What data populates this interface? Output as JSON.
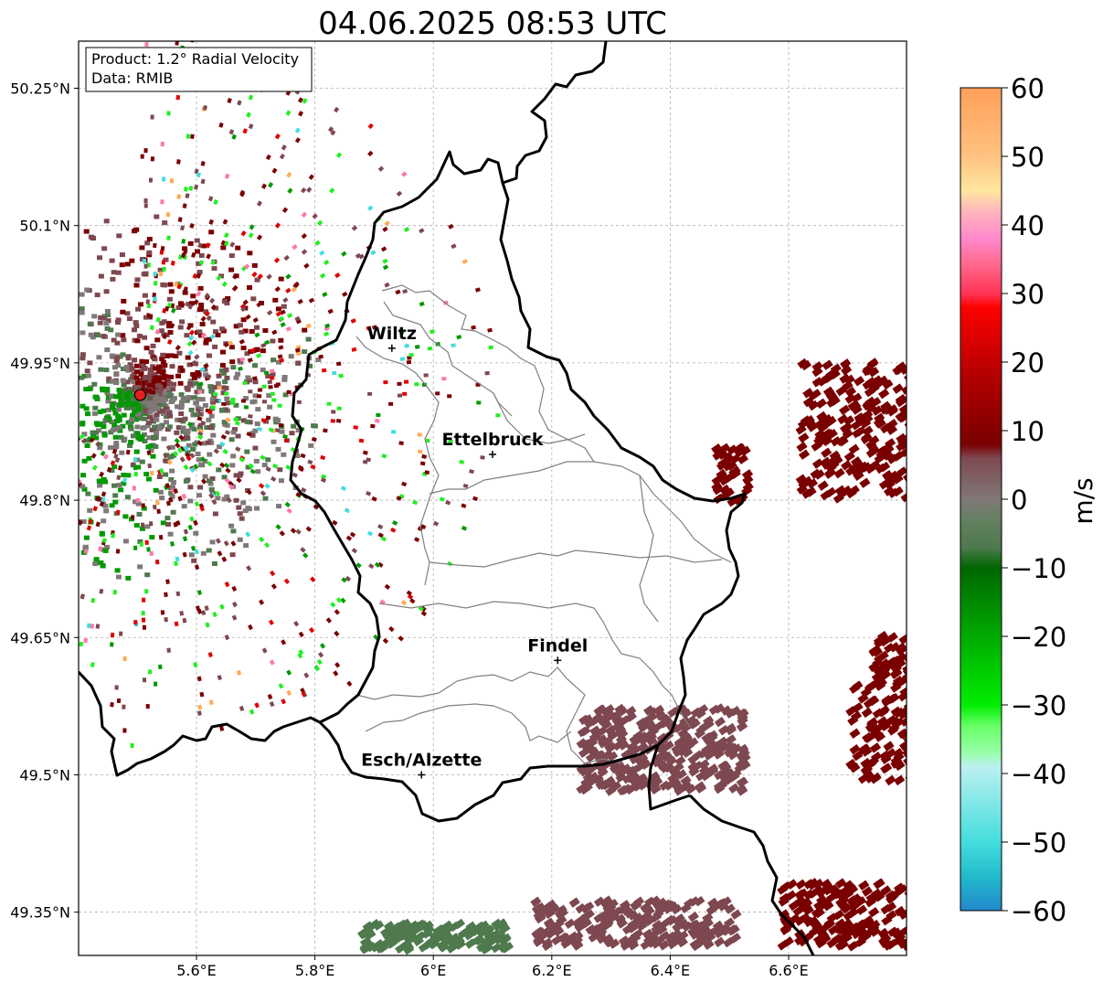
{
  "title": "04.06.2025 08:53 UTC",
  "info_box": {
    "product": "Product: 1.2° Radial Velocity",
    "data": "Data: RMIB"
  },
  "axes": {
    "lon_ticks": [
      "5.6°E",
      "5.8°E",
      "6°E",
      "6.2°E",
      "6.4°E",
      "6.6°E"
    ],
    "lat_ticks": [
      "50.25°N",
      "50.1°N",
      "49.95°N",
      "49.8°N",
      "49.65°N",
      "49.5°N",
      "49.35°N"
    ]
  },
  "cities": [
    {
      "name": "Wiltz",
      "label": "Wiltz",
      "lon": 5.93,
      "lat": 49.966
    },
    {
      "name": "Ettelbruck",
      "label": "Ettelbruck",
      "lon": 6.1,
      "lat": 49.85
    },
    {
      "name": "Findel",
      "label": "Findel",
      "lon": 6.21,
      "lat": 49.625
    },
    {
      "name": "Esch/Alzette",
      "label": "Esch/Alzette",
      "lon": 5.98,
      "lat": 49.5
    }
  ],
  "radar_site": {
    "lon": 5.505,
    "lat": 49.915,
    "color": "#e61f1f"
  },
  "colorbar": {
    "label": "m/s",
    "ticks": [
      "60",
      "50",
      "40",
      "30",
      "20",
      "10",
      "0",
      "−10",
      "−20",
      "−30",
      "−40",
      "−50",
      "−60"
    ],
    "range": [
      -60,
      60
    ],
    "stops": [
      {
        "value": 60,
        "color": "#ff9f5a"
      },
      {
        "value": 50,
        "color": "#ffc280"
      },
      {
        "value": 45,
        "color": "#ffe69e"
      },
      {
        "value": 42,
        "color": "#ffb6bc"
      },
      {
        "value": 38,
        "color": "#ff88cc"
      },
      {
        "value": 34,
        "color": "#ff6688"
      },
      {
        "value": 30,
        "color": "#ff3355"
      },
      {
        "value": 28,
        "color": "#ff0000"
      },
      {
        "value": 18,
        "color": "#b40000"
      },
      {
        "value": 8,
        "color": "#7a0000"
      },
      {
        "value": 6,
        "color": "#7e4850"
      },
      {
        "value": 0,
        "color": "#807878"
      },
      {
        "value": -3,
        "color": "#648060"
      },
      {
        "value": -7,
        "color": "#4e7a4e"
      },
      {
        "value": -10,
        "color": "#006600"
      },
      {
        "value": -20,
        "color": "#00aa00"
      },
      {
        "value": -30,
        "color": "#00ee00"
      },
      {
        "value": -33,
        "color": "#66ff66"
      },
      {
        "value": -37,
        "color": "#99ffaa"
      },
      {
        "value": -39,
        "color": "#bbf0f0"
      },
      {
        "value": -50,
        "color": "#44dddd"
      },
      {
        "value": -55,
        "color": "#22bbcc"
      },
      {
        "value": -60,
        "color": "#2288cc"
      }
    ]
  },
  "colors": {
    "border": "#000000",
    "cantons": "#808080",
    "grid": "#b0b0b0",
    "dark_red": "#7a0000",
    "red": "#e00000",
    "maroon_gray": "#7e4850",
    "gray": "#807878",
    "dark_green": "#4e7a4e",
    "green": "#009900",
    "lime": "#22ee22",
    "cyan": "#44dddd",
    "pink": "#ff77aa",
    "orange": "#ffaa55"
  }
}
